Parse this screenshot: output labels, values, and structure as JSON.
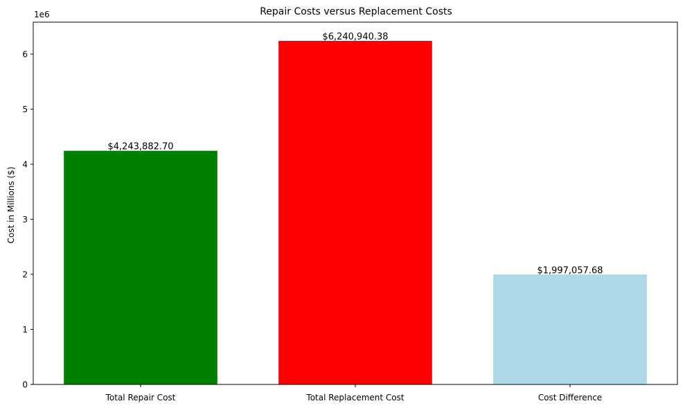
{
  "chart_data": {
    "type": "bar",
    "title": "Repair Costs versus Replacement Costs",
    "xlabel": "",
    "ylabel": "Cost in Millions ($)",
    "y_scale_label": "1e6",
    "categories": [
      "Total Repair Cost",
      "Total Replacement Cost",
      "Cost Difference"
    ],
    "values": [
      4243882.7,
      6240940.38,
      1997057.68
    ],
    "data_labels": [
      "$4,243,882.70",
      "$6,240,940.38",
      "$1,997,057.68"
    ],
    "colors": [
      "#008000",
      "#ff0000",
      "#add8e6"
    ],
    "ylim": [
      0,
      6580000
    ],
    "yticks": [
      0,
      1000000,
      2000000,
      3000000,
      4000000,
      5000000,
      6000000
    ],
    "ytick_labels": [
      "0",
      "1",
      "2",
      "3",
      "4",
      "5",
      "6"
    ],
    "grid": false,
    "legend": "none"
  }
}
